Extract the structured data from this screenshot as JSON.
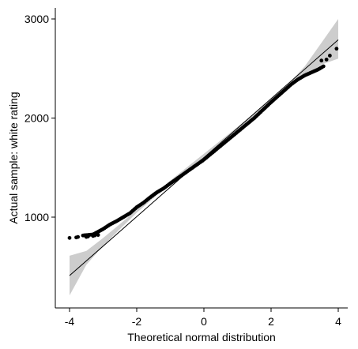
{
  "chart_data": {
    "type": "scatter",
    "subtype": "qq-plot",
    "title": "",
    "xlabel": "Theoretical normal distribution",
    "ylabel": "Actual sample: white rating",
    "xlim": [
      -4.2,
      4.2
    ],
    "ylim": [
      220,
      3100
    ],
    "x_ticks": [
      -4,
      -2,
      0,
      2,
      4
    ],
    "x_tick_labels": [
      "-4",
      "-2",
      "0",
      "2",
      "4"
    ],
    "y_ticks": [
      1000,
      2000,
      3000
    ],
    "y_tick_labels": [
      "1000",
      "2000",
      "3000"
    ],
    "grid": false,
    "legend": "none",
    "reference_line": {
      "x": [
        -4,
        4
      ],
      "y": [
        410,
        2790
      ]
    },
    "confidence_band": {
      "x": [
        -4.0,
        -3.5,
        -3.0,
        -2.5,
        -2.0,
        -1.0,
        0.0,
        1.0,
        2.0,
        2.5,
        3.0,
        3.5,
        4.0
      ],
      "lower": [
        210,
        520,
        710,
        880,
        1045,
        1340,
        1600,
        1880,
        2160,
        2300,
        2410,
        2540,
        2600
      ],
      "upper": [
        610,
        660,
        790,
        930,
        1075,
        1370,
        1640,
        1910,
        2190,
        2340,
        2520,
        2760,
        3000
      ]
    },
    "sample_curve": {
      "x": [
        -3.6,
        -3.3,
        -3.0,
        -2.8,
        -2.6,
        -2.4,
        -2.2,
        -2.0,
        -1.8,
        -1.6,
        -1.4,
        -1.2,
        -1.0,
        -0.5,
        0.0,
        0.5,
        1.0,
        1.5,
        2.0,
        2.3,
        2.6,
        2.8,
        3.0,
        3.2,
        3.4,
        3.6
      ],
      "y": [
        815,
        825,
        880,
        925,
        960,
        1000,
        1040,
        1100,
        1145,
        1200,
        1250,
        1290,
        1340,
        1460,
        1580,
        1720,
        1860,
        2000,
        2160,
        2250,
        2340,
        2390,
        2430,
        2460,
        2490,
        2530
      ]
    },
    "outlier_points": {
      "x": [
        -4.0,
        -3.8,
        -3.75,
        -3.5,
        -3.45,
        -3.3,
        -3.25,
        -3.15,
        3.5,
        3.65,
        3.75,
        3.95
      ],
      "y": [
        790,
        795,
        800,
        800,
        805,
        810,
        815,
        820,
        2580,
        2590,
        2630,
        2700
      ]
    }
  }
}
